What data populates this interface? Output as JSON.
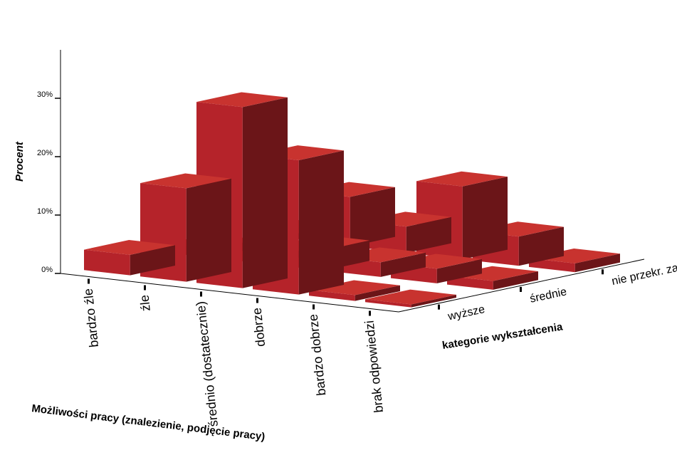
{
  "chart_data": {
    "type": "bar3d",
    "ylabel": "Procent",
    "xlabel": "Możliwości pracy (znalezienie, podjęcie pracy)",
    "zlabel": "kategorie wykształcenia",
    "yticks": [
      "0%",
      "10%",
      "20%",
      "30%"
    ],
    "ylim": [
      0,
      45
    ],
    "categories": [
      "bardzo źle",
      "źle",
      "średnio (dostatecznie)",
      "dobrze",
      "bardzo dobrze",
      "brak odpowiedzi"
    ],
    "series": [
      {
        "name": "nie przekr. zawodowego",
        "values": [
          1,
          8.5,
          4.5,
          12.5,
          5,
          1.5
        ]
      },
      {
        "name": "średnie",
        "values": [
          1.5,
          1.2,
          3.5,
          2.5,
          2.5,
          1.5
        ]
      },
      {
        "name": "wyższe",
        "values": [
          3.5,
          16,
          31,
          23,
          1,
          0.5
        ]
      }
    ],
    "colors": {
      "front": "#b5232a",
      "side": "#6b1518",
      "top": "#c8332f"
    },
    "grid": false
  }
}
